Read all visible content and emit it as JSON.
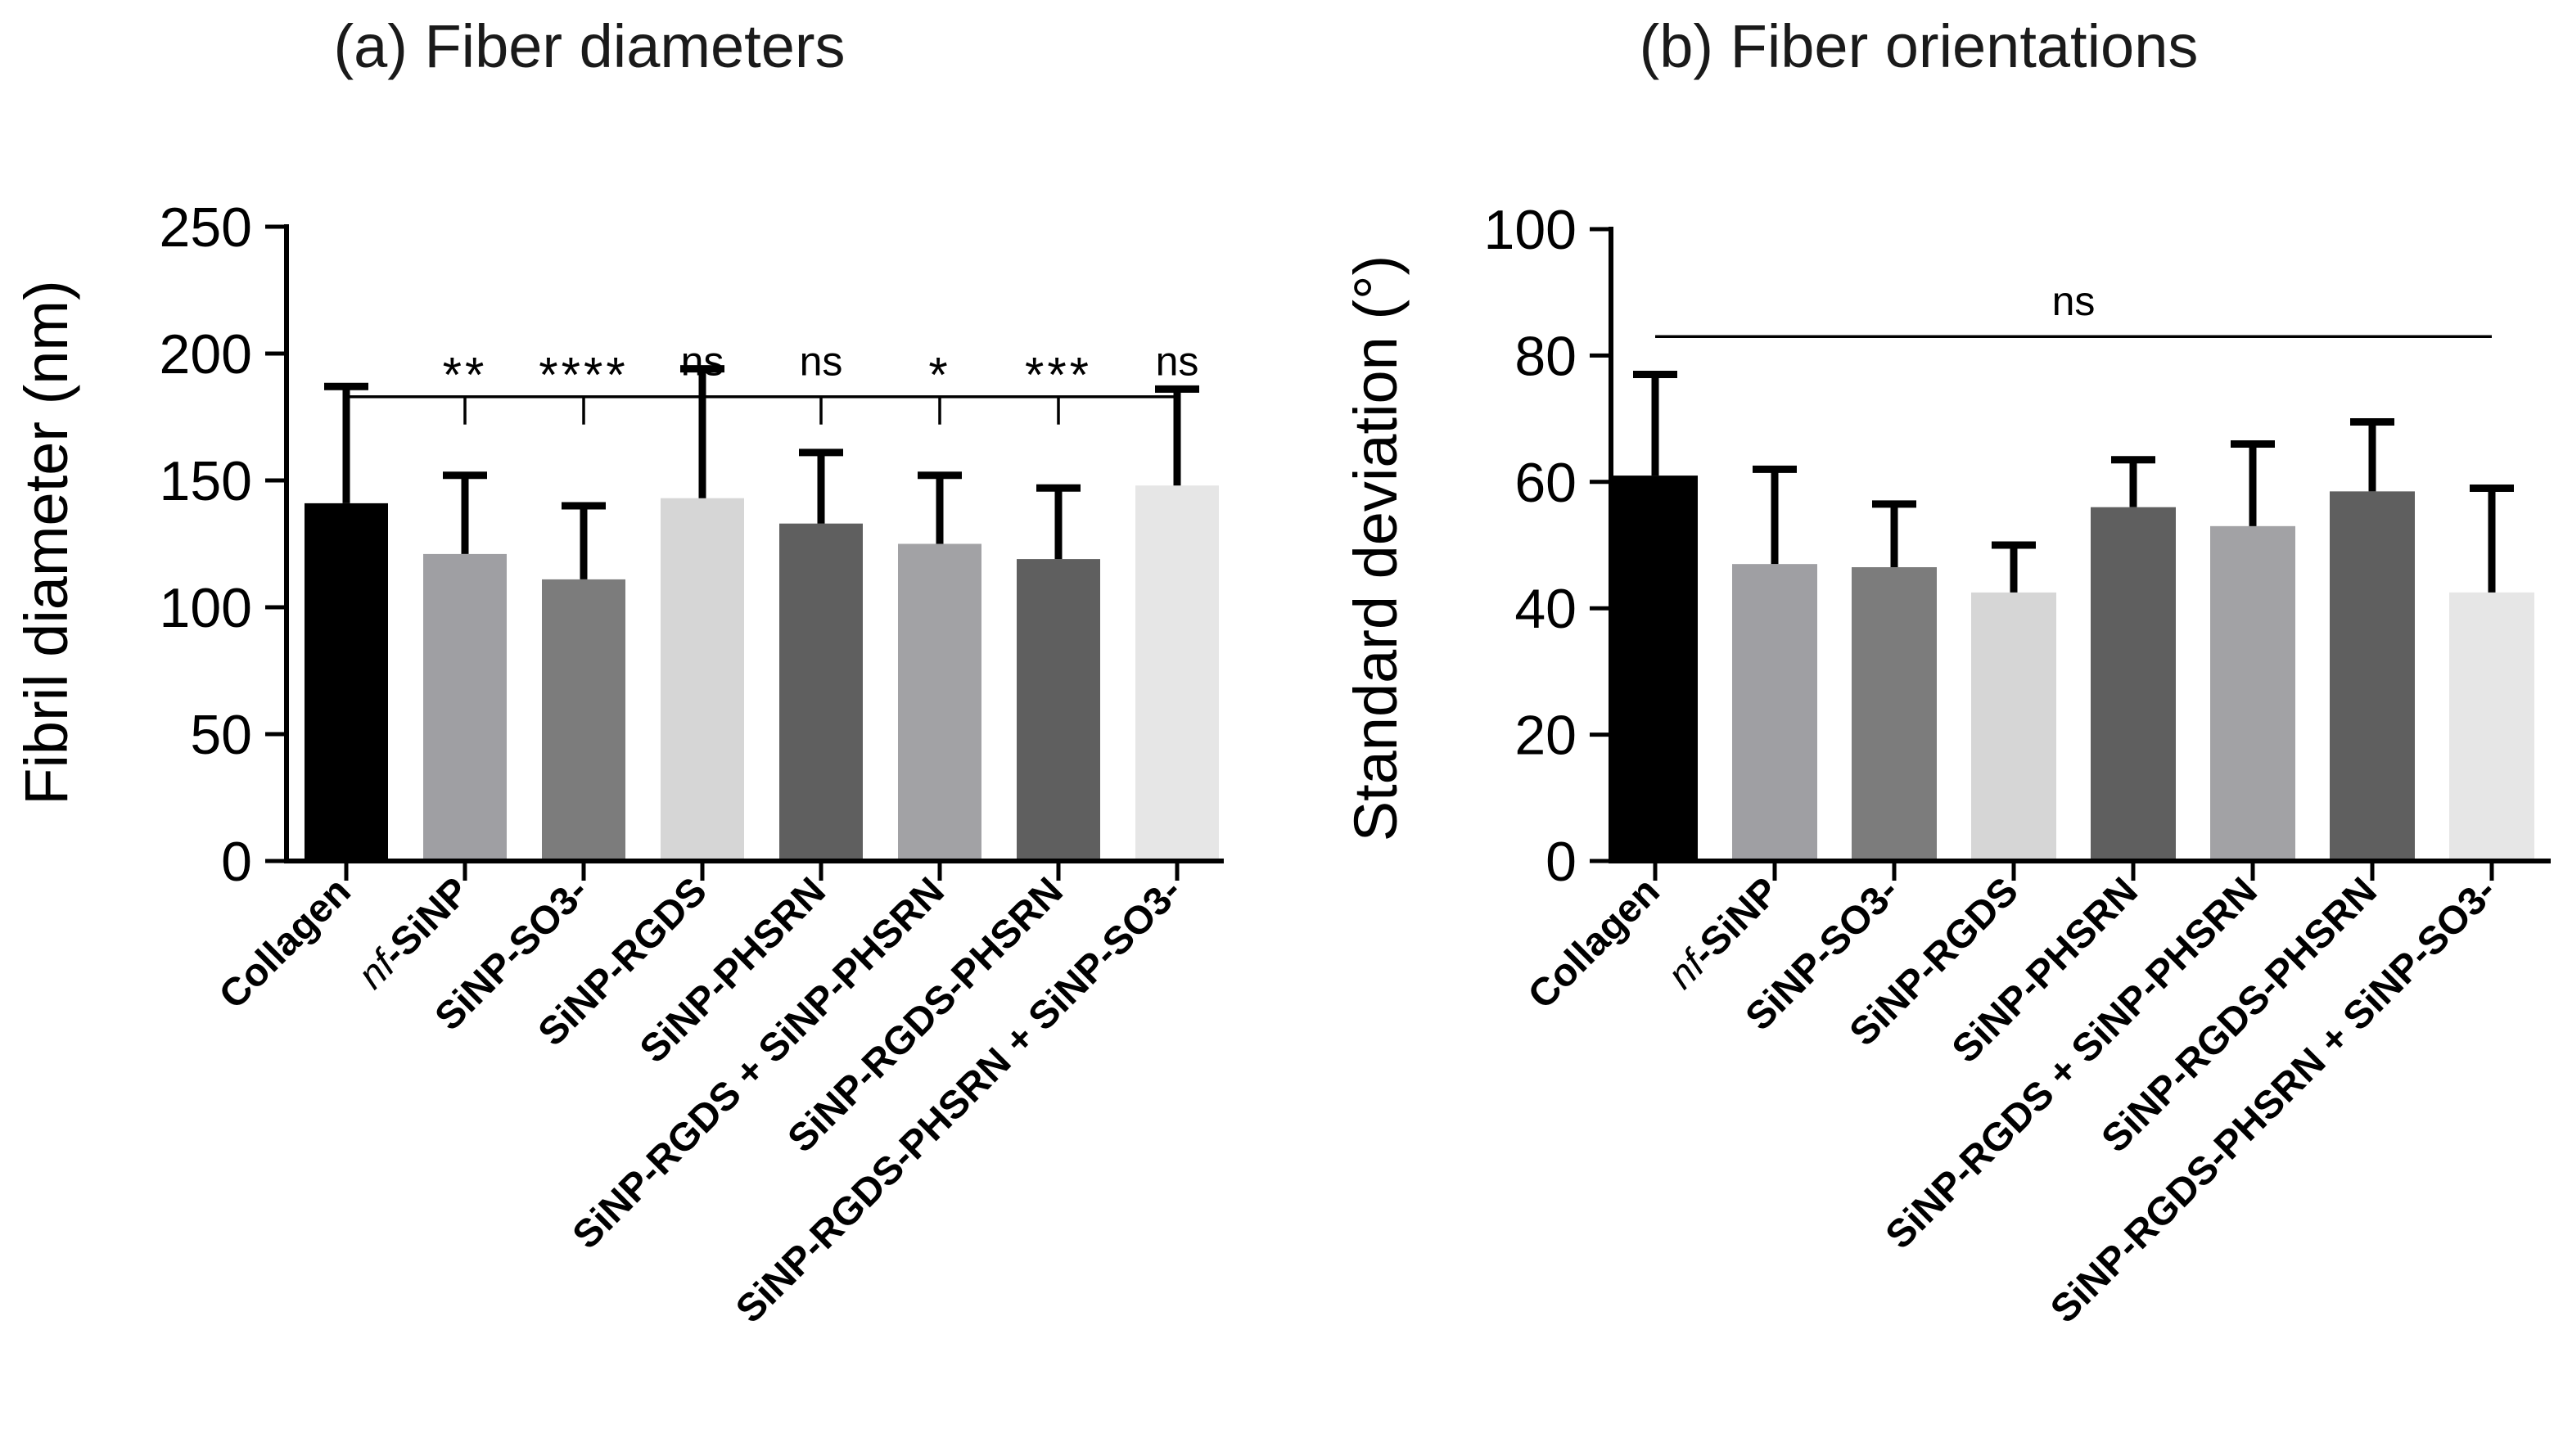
{
  "chart_data": [
    {
      "type": "bar",
      "title": "(a) Fiber diameters",
      "ylabel": "Fibril diameter (nm)",
      "xlabel": "",
      "ylim": [
        0,
        250
      ],
      "yticks": [
        0,
        50,
        100,
        150,
        200,
        250
      ],
      "categories": [
        "Collagen",
        "nf-SiNP",
        "SiNP-SO3-",
        "SiNP-RGDS",
        "SiNP-PHSRN",
        "SiNP-RGDS + SiNP-PHSRN",
        "SiNP-RGDS-PHSRN",
        "SiNP-RGDS-PHSRN + SiNP-SO3-"
      ],
      "category_prefix_italic": [
        "",
        "nf",
        "",
        "",
        "",
        "",
        "",
        ""
      ],
      "category_rest": [
        "Collagen",
        "-SiNP",
        "SiNP-SO3-",
        "SiNP-RGDS",
        "SiNP-PHSRN",
        "SiNP-RGDS + SiNP-PHSRN",
        "SiNP-RGDS-PHSRN",
        "SiNP-RGDS-PHSRN + SiNP-SO3-"
      ],
      "values": [
        141,
        121,
        111,
        143,
        133,
        125,
        119,
        148
      ],
      "error_upper": [
        187,
        152,
        140,
        194,
        161,
        152,
        147,
        186
      ],
      "colors": [
        "#000000",
        "#9f9fa3",
        "#7c7c7c",
        "#d6d6d6",
        "#5f5f5f",
        "#a2a2a5",
        "#5f5f5f",
        "#e6e6e6"
      ],
      "significance": [
        "",
        "**",
        "****",
        "ns",
        "ns",
        "*",
        "***",
        "ns"
      ],
      "comparison_bracket_y": 183
    },
    {
      "type": "bar",
      "title": "(b) Fiber orientations",
      "ylabel": "Standard deviation (°)",
      "xlabel": "",
      "ylim": [
        0,
        100
      ],
      "yticks": [
        0,
        20,
        40,
        60,
        80,
        100
      ],
      "categories": [
        "Collagen",
        "nf-SiNP",
        "SiNP-SO3-",
        "SiNP-RGDS",
        "SiNP-PHSRN",
        "SiNP-RGDS + SiNP-PHSRN",
        "SiNP-RGDS-PHSRN",
        "SiNP-RGDS-PHSRN + SiNP-SO3-"
      ],
      "category_prefix_italic": [
        "",
        "nf",
        "",
        "",
        "",
        "",
        "",
        ""
      ],
      "category_rest": [
        "Collagen",
        "-SiNP",
        "SiNP-SO3-",
        "SiNP-RGDS",
        "SiNP-PHSRN",
        "SiNP-RGDS + SiNP-PHSRN",
        "SiNP-RGDS-PHSRN",
        "SiNP-RGDS-PHSRN + SiNP-SO3-"
      ],
      "values": [
        61,
        47,
        46.5,
        42.5,
        56,
        53,
        58.5,
        42.5
      ],
      "error_upper": [
        77,
        62,
        56.5,
        50,
        63.5,
        66,
        69.5,
        59
      ],
      "colors": [
        "#000000",
        "#9f9fa3",
        "#7c7c7c",
        "#d6d6d6",
        "#5f5f5f",
        "#a2a2a5",
        "#5f5f5f",
        "#e6e6e6"
      ],
      "significance_label": "ns",
      "comparison_line_y": 83
    }
  ]
}
